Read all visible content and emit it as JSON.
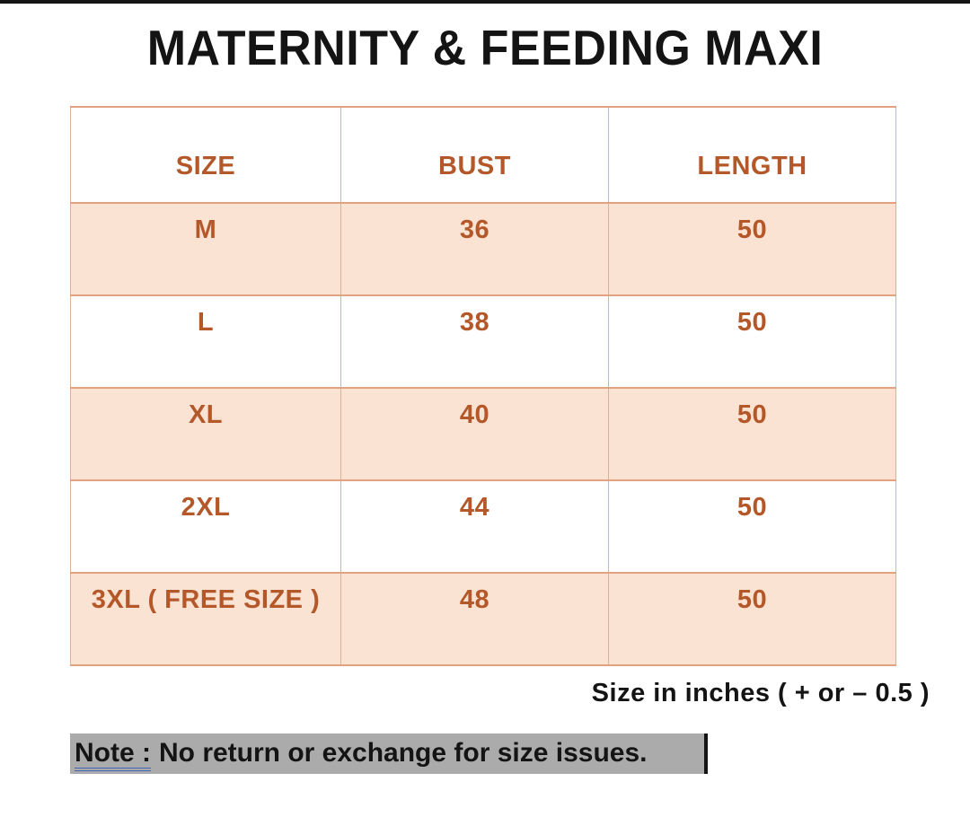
{
  "page": {
    "title": "MATERNITY & FEEDING MAXI",
    "footnote": "Size in inches ( + or  – 0.5 )",
    "note_label": "Note :",
    "note_text": "No return or exchange for size issues."
  },
  "table": {
    "headers": {
      "size": "SIZE",
      "bust": "BUST",
      "length": "LENGTH"
    },
    "rows": [
      {
        "size": "M",
        "bust": "36",
        "length": "50"
      },
      {
        "size": "L",
        "bust": "38",
        "length": "50"
      },
      {
        "size": "XL",
        "bust": "40",
        "length": "50"
      },
      {
        "size": "2XL",
        "bust": "44",
        "length": "50"
      },
      {
        "size": "3XL ( FREE SIZE )",
        "bust": "48",
        "length": "50"
      }
    ]
  },
  "chart_data": {
    "type": "table",
    "title": "MATERNITY & FEEDING MAXI",
    "columns": [
      "SIZE",
      "BUST",
      "LENGTH"
    ],
    "rows": [
      [
        "M",
        36,
        50
      ],
      [
        "L",
        38,
        50
      ],
      [
        "XL",
        40,
        50
      ],
      [
        "2XL",
        44,
        50
      ],
      [
        "3XL ( FREE SIZE )",
        48,
        50
      ]
    ],
    "footnote": "Size in inches ( + or  – 0.5 )",
    "note": "Note : No return or exchange for size issues."
  },
  "colors": {
    "accent_text": "#b4582a",
    "row_highlight": "#fbe3d4",
    "border_horizontal": "#e2a281",
    "border_vertical": "#d8b29a",
    "note_background": "#ababab",
    "note_underline": "#3f63b5",
    "title_text": "#141414"
  }
}
